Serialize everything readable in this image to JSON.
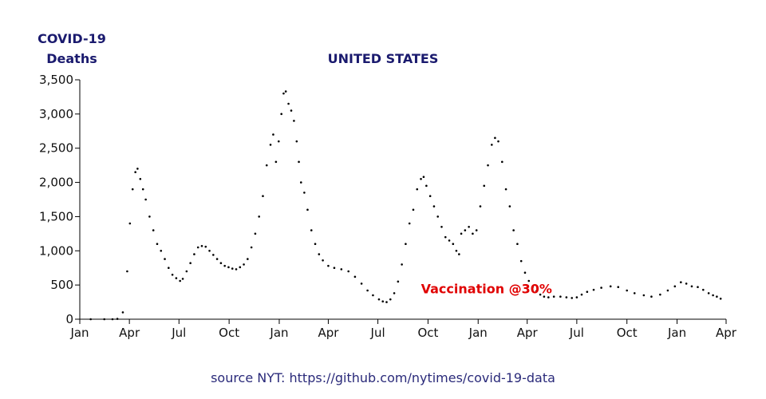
{
  "chart_data": {
    "type": "scatter",
    "title": "UNITED STATES",
    "ylabel": [
      "COVID-19",
      "Deaths"
    ],
    "source": "source NYT: https://github.com/nytimes/covid-19-data",
    "annotation": {
      "text": "Vaccination @30%",
      "color": "#e00000",
      "x": "2021-09-24"
    },
    "yticks": [
      0,
      500,
      1000,
      1500,
      2000,
      2500,
      3000,
      3500
    ],
    "ytick_labels": [
      "0",
      "500",
      "1,000",
      "1,500",
      "2,000",
      "2,500",
      "3,000",
      "3,500"
    ],
    "xticks": [
      "2020-01-01",
      "2020-04-01",
      "2020-07-01",
      "2020-10-01",
      "2021-01-01",
      "2021-04-01",
      "2021-07-01",
      "2021-10-01",
      "2022-01-01",
      "2022-04-01",
      "2022-07-01",
      "2022-10-01",
      "2023-01-01",
      "2023-04-01"
    ],
    "xtick_labels": [
      "Jan",
      "Apr",
      "Jul",
      "Oct",
      "Jan",
      "Apr",
      "Jul",
      "Oct",
      "Jan",
      "Apr",
      "Jul",
      "Oct",
      "Jan",
      "Apr"
    ],
    "xlim": [
      "2020-01-01",
      "2023-04-01"
    ],
    "ylim": [
      0,
      3500
    ],
    "grid": false,
    "marker_color": "#000000",
    "series": [
      {
        "points": [
          [
            "2020-01-21",
            0
          ],
          [
            "2020-02-15",
            0
          ],
          [
            "2020-03-01",
            0
          ],
          [
            "2020-03-10",
            5
          ],
          [
            "2020-03-20",
            100
          ],
          [
            "2020-03-28",
            700
          ],
          [
            "2020-04-02",
            1400
          ],
          [
            "2020-04-07",
            1900
          ],
          [
            "2020-04-12",
            2150
          ],
          [
            "2020-04-16",
            2200
          ],
          [
            "2020-04-21",
            2050
          ],
          [
            "2020-04-26",
            1900
          ],
          [
            "2020-05-01",
            1750
          ],
          [
            "2020-05-08",
            1500
          ],
          [
            "2020-05-15",
            1300
          ],
          [
            "2020-05-22",
            1100
          ],
          [
            "2020-05-29",
            1000
          ],
          [
            "2020-06-05",
            880
          ],
          [
            "2020-06-12",
            750
          ],
          [
            "2020-06-19",
            650
          ],
          [
            "2020-06-26",
            600
          ],
          [
            "2020-07-03",
            560
          ],
          [
            "2020-07-08",
            590
          ],
          [
            "2020-07-15",
            700
          ],
          [
            "2020-07-22",
            820
          ],
          [
            "2020-07-29",
            950
          ],
          [
            "2020-08-05",
            1050
          ],
          [
            "2020-08-12",
            1070
          ],
          [
            "2020-08-19",
            1060
          ],
          [
            "2020-08-26",
            1000
          ],
          [
            "2020-09-02",
            940
          ],
          [
            "2020-09-09",
            880
          ],
          [
            "2020-09-16",
            820
          ],
          [
            "2020-09-23",
            780
          ],
          [
            "2020-09-30",
            760
          ],
          [
            "2020-10-07",
            740
          ],
          [
            "2020-10-14",
            730
          ],
          [
            "2020-10-21",
            760
          ],
          [
            "2020-10-28",
            800
          ],
          [
            "2020-11-04",
            880
          ],
          [
            "2020-11-11",
            1050
          ],
          [
            "2020-11-18",
            1250
          ],
          [
            "2020-11-25",
            1500
          ],
          [
            "2020-12-02",
            1800
          ],
          [
            "2020-12-09",
            2250
          ],
          [
            "2020-12-16",
            2550
          ],
          [
            "2020-12-21",
            2700
          ],
          [
            "2020-12-26",
            2300
          ],
          [
            "2020-12-31",
            2600
          ],
          [
            "2021-01-05",
            3000
          ],
          [
            "2021-01-09",
            3300
          ],
          [
            "2021-01-13",
            3330
          ],
          [
            "2021-01-18",
            3150
          ],
          [
            "2021-01-23",
            3050
          ],
          [
            "2021-01-28",
            2900
          ],
          [
            "2021-02-02",
            2600
          ],
          [
            "2021-02-06",
            2300
          ],
          [
            "2021-02-10",
            2000
          ],
          [
            "2021-02-16",
            1850
          ],
          [
            "2021-02-22",
            1600
          ],
          [
            "2021-03-01",
            1300
          ],
          [
            "2021-03-08",
            1100
          ],
          [
            "2021-03-15",
            950
          ],
          [
            "2021-03-22",
            860
          ],
          [
            "2021-04-01",
            780
          ],
          [
            "2021-04-12",
            750
          ],
          [
            "2021-04-25",
            730
          ],
          [
            "2021-05-08",
            700
          ],
          [
            "2021-05-20",
            620
          ],
          [
            "2021-06-01",
            520
          ],
          [
            "2021-06-12",
            420
          ],
          [
            "2021-06-22",
            350
          ],
          [
            "2021-07-03",
            290
          ],
          [
            "2021-07-10",
            260
          ],
          [
            "2021-07-17",
            250
          ],
          [
            "2021-07-24",
            290
          ],
          [
            "2021-07-31",
            380
          ],
          [
            "2021-08-07",
            550
          ],
          [
            "2021-08-14",
            800
          ],
          [
            "2021-08-21",
            1100
          ],
          [
            "2021-08-28",
            1400
          ],
          [
            "2021-09-04",
            1600
          ],
          [
            "2021-09-11",
            1900
          ],
          [
            "2021-09-18",
            2050
          ],
          [
            "2021-09-23",
            2080
          ],
          [
            "2021-09-28",
            1950
          ],
          [
            "2021-10-05",
            1800
          ],
          [
            "2021-10-12",
            1650
          ],
          [
            "2021-10-19",
            1500
          ],
          [
            "2021-10-26",
            1350
          ],
          [
            "2021-11-02",
            1200
          ],
          [
            "2021-11-09",
            1150
          ],
          [
            "2021-11-16",
            1100
          ],
          [
            "2021-11-22",
            1000
          ],
          [
            "2021-11-27",
            950
          ],
          [
            "2021-12-01",
            1250
          ],
          [
            "2021-12-08",
            1300
          ],
          [
            "2021-12-15",
            1350
          ],
          [
            "2021-12-22",
            1250
          ],
          [
            "2021-12-29",
            1300
          ],
          [
            "2022-01-05",
            1650
          ],
          [
            "2022-01-12",
            1950
          ],
          [
            "2022-01-19",
            2250
          ],
          [
            "2022-01-26",
            2550
          ],
          [
            "2022-02-01",
            2650
          ],
          [
            "2022-02-07",
            2600
          ],
          [
            "2022-02-14",
            2300
          ],
          [
            "2022-02-21",
            1900
          ],
          [
            "2022-02-28",
            1650
          ],
          [
            "2022-03-07",
            1300
          ],
          [
            "2022-03-14",
            1100
          ],
          [
            "2022-03-21",
            850
          ],
          [
            "2022-03-28",
            680
          ],
          [
            "2022-04-04",
            560
          ],
          [
            "2022-04-11",
            470
          ],
          [
            "2022-04-18",
            410
          ],
          [
            "2022-04-25",
            360
          ],
          [
            "2022-05-02",
            330
          ],
          [
            "2022-05-10",
            320
          ],
          [
            "2022-05-20",
            330
          ],
          [
            "2022-06-01",
            330
          ],
          [
            "2022-06-12",
            320
          ],
          [
            "2022-06-22",
            310
          ],
          [
            "2022-07-01",
            320
          ],
          [
            "2022-07-10",
            360
          ],
          [
            "2022-07-20",
            400
          ],
          [
            "2022-08-01",
            430
          ],
          [
            "2022-08-15",
            460
          ],
          [
            "2022-09-01",
            480
          ],
          [
            "2022-09-15",
            470
          ],
          [
            "2022-10-01",
            420
          ],
          [
            "2022-10-15",
            380
          ],
          [
            "2022-11-01",
            350
          ],
          [
            "2022-11-15",
            330
          ],
          [
            "2022-12-01",
            360
          ],
          [
            "2022-12-15",
            420
          ],
          [
            "2022-12-28",
            480
          ],
          [
            "2023-01-08",
            540
          ],
          [
            "2023-01-18",
            520
          ],
          [
            "2023-01-28",
            480
          ],
          [
            "2023-02-08",
            470
          ],
          [
            "2023-02-18",
            430
          ],
          [
            "2023-02-28",
            380
          ],
          [
            "2023-03-08",
            350
          ],
          [
            "2023-03-15",
            330
          ],
          [
            "2023-03-22",
            300
          ]
        ]
      }
    ]
  }
}
